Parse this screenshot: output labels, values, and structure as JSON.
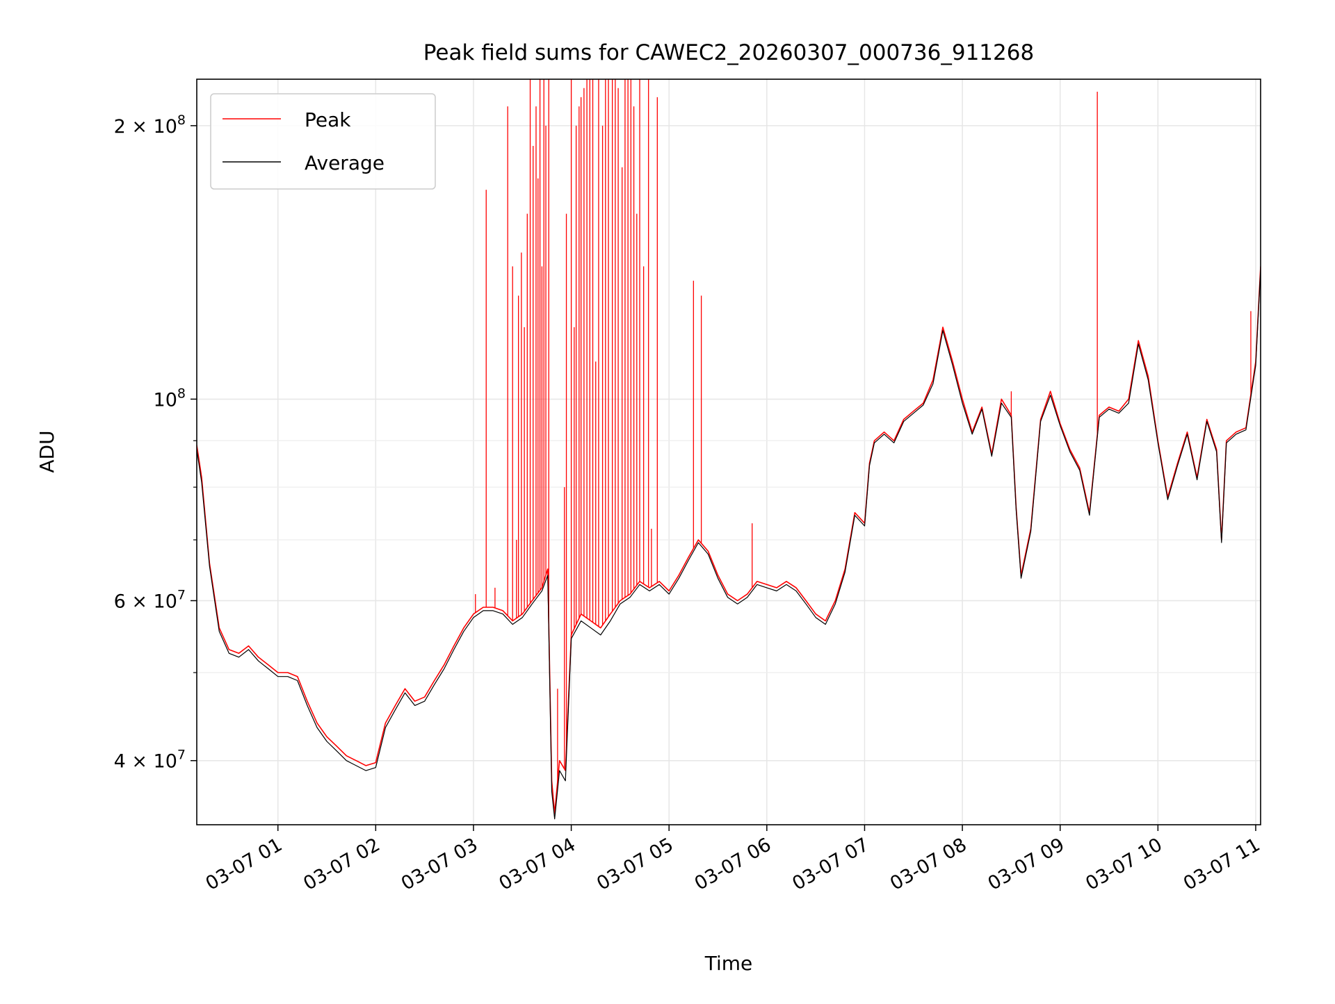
{
  "chart_data": {
    "type": "line",
    "title": "Peak field sums for CAWEC2_20260307_000736_911268",
    "xlabel": "Time",
    "ylabel": "ADU",
    "y_scale": "log",
    "ylim": [
      34000000,
      225000000
    ],
    "xlim_hours": [
      0.17,
      11.05
    ],
    "grid": true,
    "legend_position": "upper-left",
    "x_ticks": [
      {
        "hour": 1,
        "label": "03-07 01"
      },
      {
        "hour": 2,
        "label": "03-07 02"
      },
      {
        "hour": 3,
        "label": "03-07 03"
      },
      {
        "hour": 4,
        "label": "03-07 04"
      },
      {
        "hour": 5,
        "label": "03-07 05"
      },
      {
        "hour": 6,
        "label": "03-07 06"
      },
      {
        "hour": 7,
        "label": "03-07 07"
      },
      {
        "hour": 8,
        "label": "03-07 08"
      },
      {
        "hour": 9,
        "label": "03-07 09"
      },
      {
        "hour": 10,
        "label": "03-07 10"
      },
      {
        "hour": 11,
        "label": "03-07 11"
      }
    ],
    "y_ticks": [
      {
        "value": 40000000,
        "mantissa": "4",
        "exponent": "7"
      },
      {
        "value": 60000000,
        "mantissa": "6",
        "exponent": "7"
      },
      {
        "value": 100000000,
        "mantissa": "",
        "exponent": "8"
      },
      {
        "value": 200000000,
        "mantissa": "2",
        "exponent": "8"
      }
    ],
    "y_minor_ticks": [
      50000000,
      70000000,
      80000000,
      90000000
    ],
    "series": [
      {
        "name": "Peak",
        "color": "#ff0000",
        "points": [
          [
            0.17,
            89000000
          ],
          [
            0.22,
            82000000
          ],
          [
            0.3,
            66000000
          ],
          [
            0.4,
            56000000
          ],
          [
            0.5,
            53000000
          ],
          [
            0.6,
            52500000
          ],
          [
            0.7,
            53500000
          ],
          [
            0.8,
            52000000
          ],
          [
            0.9,
            51000000
          ],
          [
            1.0,
            50000000
          ],
          [
            1.1,
            50000000
          ],
          [
            1.2,
            49500000
          ],
          [
            1.3,
            46500000
          ],
          [
            1.4,
            44000000
          ],
          [
            1.5,
            42500000
          ],
          [
            1.6,
            41500000
          ],
          [
            1.7,
            40500000
          ],
          [
            1.8,
            40000000
          ],
          [
            1.9,
            39500000
          ],
          [
            2.0,
            39800000
          ],
          [
            2.1,
            44000000
          ],
          [
            2.2,
            46000000
          ],
          [
            2.3,
            48000000
          ],
          [
            2.4,
            46500000
          ],
          [
            2.5,
            47000000
          ],
          [
            2.6,
            49000000
          ],
          [
            2.7,
            51000000
          ],
          [
            2.8,
            53500000
          ],
          [
            2.9,
            56000000
          ],
          [
            3.0,
            58000000
          ],
          [
            3.1,
            59000000
          ],
          [
            3.2,
            59000000
          ],
          [
            3.3,
            58500000
          ],
          [
            3.4,
            57000000
          ],
          [
            3.5,
            58000000
          ],
          [
            3.6,
            60000000
          ],
          [
            3.7,
            62000000
          ],
          [
            3.76,
            65000000
          ],
          [
            3.8,
            38000000
          ],
          [
            3.83,
            35000000
          ],
          [
            3.88,
            40000000
          ],
          [
            3.94,
            39000000
          ],
          [
            4.0,
            55000000
          ],
          [
            4.1,
            58000000
          ],
          [
            4.2,
            57000000
          ],
          [
            4.3,
            56000000
          ],
          [
            4.4,
            58000000
          ],
          [
            4.5,
            60000000
          ],
          [
            4.6,
            61000000
          ],
          [
            4.7,
            63000000
          ],
          [
            4.8,
            62000000
          ],
          [
            4.9,
            63000000
          ],
          [
            5.0,
            61500000
          ],
          [
            5.1,
            64000000
          ],
          [
            5.2,
            67000000
          ],
          [
            5.3,
            70000000
          ],
          [
            5.4,
            68000000
          ],
          [
            5.5,
            64000000
          ],
          [
            5.6,
            61000000
          ],
          [
            5.7,
            60000000
          ],
          [
            5.8,
            61000000
          ],
          [
            5.9,
            63000000
          ],
          [
            6.0,
            62500000
          ],
          [
            6.1,
            62000000
          ],
          [
            6.2,
            63000000
          ],
          [
            6.3,
            62000000
          ],
          [
            6.4,
            60000000
          ],
          [
            6.5,
            58000000
          ],
          [
            6.6,
            57000000
          ],
          [
            6.7,
            60000000
          ],
          [
            6.8,
            65000000
          ],
          [
            6.9,
            75000000
          ],
          [
            7.0,
            73000000
          ],
          [
            7.05,
            85000000
          ],
          [
            7.1,
            90000000
          ],
          [
            7.2,
            92000000
          ],
          [
            7.3,
            90000000
          ],
          [
            7.4,
            95000000
          ],
          [
            7.5,
            97000000
          ],
          [
            7.6,
            99000000
          ],
          [
            7.7,
            105000000
          ],
          [
            7.8,
            120000000
          ],
          [
            7.9,
            110000000
          ],
          [
            8.0,
            100000000
          ],
          [
            8.1,
            92000000
          ],
          [
            8.2,
            98000000
          ],
          [
            8.3,
            87000000
          ],
          [
            8.4,
            100000000
          ],
          [
            8.5,
            96000000
          ],
          [
            8.55,
            76000000
          ],
          [
            8.6,
            64000000
          ],
          [
            8.7,
            72000000
          ],
          [
            8.8,
            95000000
          ],
          [
            8.9,
            102000000
          ],
          [
            9.0,
            94000000
          ],
          [
            9.1,
            88000000
          ],
          [
            9.2,
            84000000
          ],
          [
            9.3,
            75000000
          ],
          [
            9.4,
            96000000
          ],
          [
            9.5,
            98000000
          ],
          [
            9.6,
            97000000
          ],
          [
            9.7,
            100000000
          ],
          [
            9.8,
            116000000
          ],
          [
            9.9,
            106000000
          ],
          [
            10.0,
            90000000
          ],
          [
            10.1,
            78000000
          ],
          [
            10.2,
            85000000
          ],
          [
            10.3,
            92000000
          ],
          [
            10.4,
            82000000
          ],
          [
            10.5,
            95000000
          ],
          [
            10.6,
            88000000
          ],
          [
            10.65,
            70000000
          ],
          [
            10.7,
            90000000
          ],
          [
            10.8,
            92000000
          ],
          [
            10.9,
            93000000
          ],
          [
            11.0,
            110000000
          ],
          [
            11.05,
            140000000
          ]
        ]
      },
      {
        "name": "Average",
        "color": "#000000",
        "points": [
          [
            0.17,
            88000000
          ],
          [
            0.22,
            81000000
          ],
          [
            0.3,
            65500000
          ],
          [
            0.4,
            55500000
          ],
          [
            0.5,
            52500000
          ],
          [
            0.6,
            52000000
          ],
          [
            0.7,
            53000000
          ],
          [
            0.8,
            51500000
          ],
          [
            0.9,
            50500000
          ],
          [
            1.0,
            49500000
          ],
          [
            1.1,
            49500000
          ],
          [
            1.2,
            49000000
          ],
          [
            1.3,
            46000000
          ],
          [
            1.4,
            43500000
          ],
          [
            1.5,
            42000000
          ],
          [
            1.6,
            41000000
          ],
          [
            1.7,
            40000000
          ],
          [
            1.8,
            39500000
          ],
          [
            1.9,
            39000000
          ],
          [
            2.0,
            39300000
          ],
          [
            2.1,
            43500000
          ],
          [
            2.2,
            45500000
          ],
          [
            2.3,
            47500000
          ],
          [
            2.4,
            46000000
          ],
          [
            2.5,
            46500000
          ],
          [
            2.6,
            48500000
          ],
          [
            2.7,
            50500000
          ],
          [
            2.8,
            53000000
          ],
          [
            2.9,
            55500000
          ],
          [
            3.0,
            57500000
          ],
          [
            3.1,
            58500000
          ],
          [
            3.2,
            58500000
          ],
          [
            3.3,
            58000000
          ],
          [
            3.4,
            56500000
          ],
          [
            3.5,
            57500000
          ],
          [
            3.6,
            59500000
          ],
          [
            3.7,
            61500000
          ],
          [
            3.76,
            64000000
          ],
          [
            3.8,
            37000000
          ],
          [
            3.83,
            34500000
          ],
          [
            3.88,
            39000000
          ],
          [
            3.94,
            38000000
          ],
          [
            4.0,
            54500000
          ],
          [
            4.1,
            57000000
          ],
          [
            4.2,
            56000000
          ],
          [
            4.3,
            55000000
          ],
          [
            4.4,
            57000000
          ],
          [
            4.5,
            59500000
          ],
          [
            4.6,
            60500000
          ],
          [
            4.7,
            62500000
          ],
          [
            4.8,
            61500000
          ],
          [
            4.9,
            62500000
          ],
          [
            5.0,
            61000000
          ],
          [
            5.1,
            63500000
          ],
          [
            5.2,
            66500000
          ],
          [
            5.3,
            69500000
          ],
          [
            5.4,
            67500000
          ],
          [
            5.5,
            63500000
          ],
          [
            5.6,
            60500000
          ],
          [
            5.7,
            59500000
          ],
          [
            5.8,
            60500000
          ],
          [
            5.9,
            62500000
          ],
          [
            6.0,
            62000000
          ],
          [
            6.1,
            61500000
          ],
          [
            6.2,
            62500000
          ],
          [
            6.3,
            61500000
          ],
          [
            6.4,
            59500000
          ],
          [
            6.5,
            57500000
          ],
          [
            6.6,
            56500000
          ],
          [
            6.7,
            59500000
          ],
          [
            6.8,
            64500000
          ],
          [
            6.9,
            74500000
          ],
          [
            7.0,
            72500000
          ],
          [
            7.05,
            84500000
          ],
          [
            7.1,
            89500000
          ],
          [
            7.2,
            91500000
          ],
          [
            7.3,
            89500000
          ],
          [
            7.4,
            94500000
          ],
          [
            7.5,
            96500000
          ],
          [
            7.6,
            98500000
          ],
          [
            7.7,
            104000000
          ],
          [
            7.8,
            119000000
          ],
          [
            7.9,
            109000000
          ],
          [
            8.0,
            99000000
          ],
          [
            8.1,
            91500000
          ],
          [
            8.2,
            97500000
          ],
          [
            8.3,
            86500000
          ],
          [
            8.4,
            99000000
          ],
          [
            8.5,
            95500000
          ],
          [
            8.55,
            75500000
          ],
          [
            8.6,
            63500000
          ],
          [
            8.7,
            71500000
          ],
          [
            8.8,
            94500000
          ],
          [
            8.9,
            101000000
          ],
          [
            9.0,
            93500000
          ],
          [
            9.1,
            87500000
          ],
          [
            9.2,
            83500000
          ],
          [
            9.3,
            74500000
          ],
          [
            9.4,
            95500000
          ],
          [
            9.5,
            97500000
          ],
          [
            9.6,
            96500000
          ],
          [
            9.7,
            99000000
          ],
          [
            9.8,
            115000000
          ],
          [
            9.9,
            105000000
          ],
          [
            10.0,
            89500000
          ],
          [
            10.1,
            77500000
          ],
          [
            10.2,
            84500000
          ],
          [
            10.3,
            91500000
          ],
          [
            10.4,
            81500000
          ],
          [
            10.5,
            94500000
          ],
          [
            10.6,
            87500000
          ],
          [
            10.65,
            69500000
          ],
          [
            10.7,
            89500000
          ],
          [
            10.8,
            91500000
          ],
          [
            10.9,
            92500000
          ],
          [
            11.0,
            109000000
          ],
          [
            11.05,
            139000000
          ]
        ]
      }
    ],
    "peak_spikes": [
      [
        3.02,
        61000000
      ],
      [
        3.13,
        170000000
      ],
      [
        3.22,
        62000000
      ],
      [
        3.35,
        210000000
      ],
      [
        3.4,
        140000000
      ],
      [
        3.44,
        70000000
      ],
      [
        3.46,
        130000000
      ],
      [
        3.49,
        145000000
      ],
      [
        3.52,
        120000000
      ],
      [
        3.55,
        160000000
      ],
      [
        3.58,
        225000000
      ],
      [
        3.61,
        190000000
      ],
      [
        3.64,
        210000000
      ],
      [
        3.66,
        175000000
      ],
      [
        3.68,
        225000000
      ],
      [
        3.7,
        140000000
      ],
      [
        3.72,
        225000000
      ],
      [
        3.74,
        200000000
      ],
      [
        3.77,
        225000000
      ],
      [
        3.86,
        48000000
      ],
      [
        3.93,
        80000000
      ],
      [
        3.95,
        160000000
      ],
      [
        4.0,
        225000000
      ],
      [
        4.03,
        120000000
      ],
      [
        4.05,
        200000000
      ],
      [
        4.08,
        210000000
      ],
      [
        4.1,
        215000000
      ],
      [
        4.13,
        220000000
      ],
      [
        4.16,
        225000000
      ],
      [
        4.19,
        225000000
      ],
      [
        4.22,
        225000000
      ],
      [
        4.25,
        110000000
      ],
      [
        4.28,
        225000000
      ],
      [
        4.32,
        200000000
      ],
      [
        4.35,
        225000000
      ],
      [
        4.38,
        225000000
      ],
      [
        4.42,
        225000000
      ],
      [
        4.45,
        225000000
      ],
      [
        4.48,
        220000000
      ],
      [
        4.52,
        180000000
      ],
      [
        4.55,
        225000000
      ],
      [
        4.58,
        225000000
      ],
      [
        4.61,
        225000000
      ],
      [
        4.64,
        210000000
      ],
      [
        4.67,
        160000000
      ],
      [
        4.7,
        225000000
      ],
      [
        4.74,
        140000000
      ],
      [
        4.79,
        225000000
      ],
      [
        4.82,
        72000000
      ],
      [
        4.88,
        215000000
      ],
      [
        5.25,
        135000000
      ],
      [
        5.33,
        130000000
      ],
      [
        5.85,
        73000000
      ],
      [
        8.5,
        102000000
      ],
      [
        9.38,
        218000000
      ],
      [
        10.95,
        125000000
      ]
    ],
    "legend": [
      {
        "label": "Peak",
        "color": "#ff0000"
      },
      {
        "label": "Average",
        "color": "#000000"
      }
    ]
  }
}
